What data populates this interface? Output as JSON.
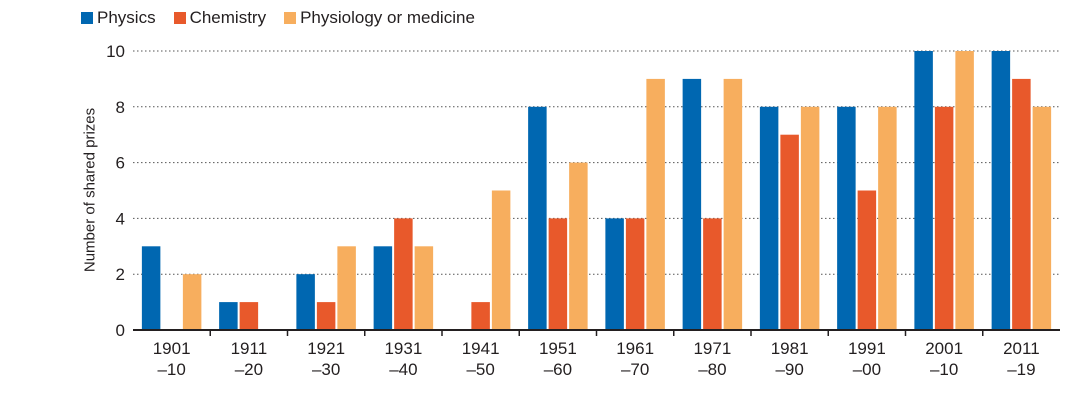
{
  "chart_data": {
    "type": "bar",
    "categories": [
      [
        "1901",
        "–10"
      ],
      [
        "1911",
        "–20"
      ],
      [
        "1921",
        "–30"
      ],
      [
        "1931",
        "–40"
      ],
      [
        "1941",
        "–50"
      ],
      [
        "1951",
        "–60"
      ],
      [
        "1961",
        "–70"
      ],
      [
        "1971",
        "–80"
      ],
      [
        "1981",
        "–90"
      ],
      [
        "1991",
        "–00"
      ],
      [
        "2001",
        "–10"
      ],
      [
        "2011",
        "–19"
      ]
    ],
    "series": [
      {
        "name": "Physics",
        "color": "#0067b1",
        "values": [
          3,
          1,
          2,
          3,
          0,
          8,
          4,
          9,
          8,
          8,
          10,
          10
        ]
      },
      {
        "name": "Chemistry",
        "color": "#e8592b",
        "values": [
          0,
          1,
          1,
          4,
          1,
          4,
          4,
          4,
          7,
          5,
          8,
          9
        ]
      },
      {
        "name": "Physiology or medicine",
        "color": "#f7ae5e",
        "values": [
          2,
          0,
          3,
          3,
          5,
          6,
          9,
          9,
          8,
          8,
          10,
          8
        ]
      }
    ],
    "xlabel": "",
    "ylabel": "Number of shared prizes",
    "ylim": [
      0,
      10
    ],
    "yticks": [
      0,
      2,
      4,
      6,
      8,
      10
    ],
    "grid": "horizontal-dotted",
    "legend_position": "top-left"
  }
}
